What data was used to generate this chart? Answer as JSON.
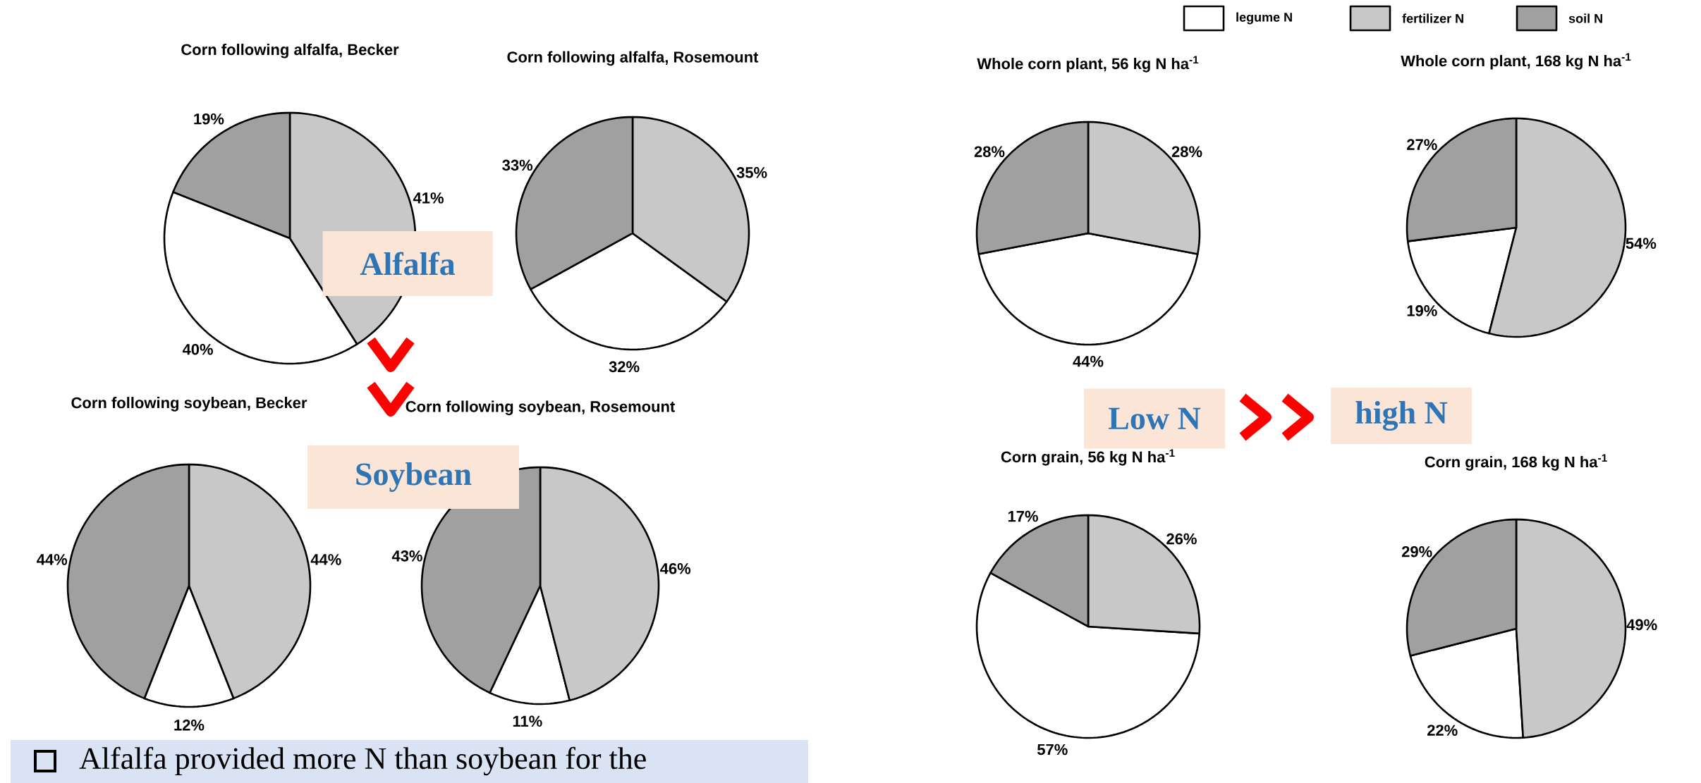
{
  "chart_data": [
    {
      "type": "pie",
      "title": "Corn following alfalfa, Becker",
      "categories": [
        null,
        null,
        null
      ],
      "values": [
        40,
        41,
        19
      ],
      "value_labels": [
        "40%",
        "41%",
        "19%"
      ],
      "colors": [
        "#ffffff",
        "#c8c8c8",
        "#a0a0a0"
      ]
    },
    {
      "type": "pie",
      "title": "Corn following alfalfa, Rosemount",
      "categories": [
        null,
        null,
        null
      ],
      "values": [
        32,
        35,
        33
      ],
      "value_labels": [
        "32%",
        "35%",
        "33%"
      ],
      "colors": [
        "#ffffff",
        "#c8c8c8",
        "#a0a0a0"
      ]
    },
    {
      "type": "pie",
      "title": "Corn following soybean, Becker",
      "categories": [
        null,
        null,
        null
      ],
      "values": [
        12,
        44,
        44
      ],
      "value_labels": [
        "12%",
        "44%",
        "44%"
      ],
      "colors": [
        "#ffffff",
        "#c8c8c8",
        "#a0a0a0"
      ]
    },
    {
      "type": "pie",
      "title": "Corn following soybean, Rosemount",
      "categories": [
        null,
        null,
        null
      ],
      "values": [
        11,
        46,
        43
      ],
      "value_labels": [
        "11%",
        "46%",
        "43%"
      ],
      "colors": [
        "#ffffff",
        "#c8c8c8",
        "#a0a0a0"
      ]
    },
    {
      "type": "pie",
      "title": "Whole corn plant, 56 kg N ha$^{-1}$",
      "categories": [
        "legume N",
        "fertilizer N",
        "soil N"
      ],
      "legend": "top",
      "values": [
        44,
        28,
        28
      ],
      "value_labels": [
        "44%",
        "28%",
        "28%"
      ],
      "colors": [
        "#ffffff",
        "#c8c8c8",
        "#a0a0a0"
      ]
    },
    {
      "type": "pie",
      "title": "Whole corn plant, 168 kg N ha$^{-1}$",
      "categories": [
        null,
        null,
        null
      ],
      "values": [
        19,
        54,
        27
      ],
      "value_labels": [
        "19%",
        "54%",
        "27%"
      ],
      "colors": [
        "#ffffff",
        "#c8c8c8",
        "#a0a0a0"
      ]
    },
    {
      "type": "pie",
      "title": "Corn grain, 56 kg N ha$^{-1}$",
      "categories": [
        null,
        null,
        null
      ],
      "values": [
        57,
        26,
        17
      ],
      "value_labels": [
        "57%",
        "26%",
        "17%"
      ],
      "colors": [
        "#ffffff",
        "#c8c8c8",
        "#a0a0a0"
      ]
    },
    {
      "type": "pie",
      "title": "Corn grain, 168 kg N ha$^{-1}$",
      "categories": [
        null,
        null,
        null
      ],
      "values": [
        22,
        49,
        29
      ],
      "value_labels": [
        "22%",
        "49%",
        "29%"
      ],
      "colors": [
        "#ffffff",
        "#c8c8c8",
        "#a0a0a0"
      ]
    },
    {
      "type": "other",
      "annotations": [
        "Alfalfa",
        "Soybean",
        "Low N",
        "high N",
        "Alfalfa provided more N than soybean for the"
      ]
    }
  ]
}
